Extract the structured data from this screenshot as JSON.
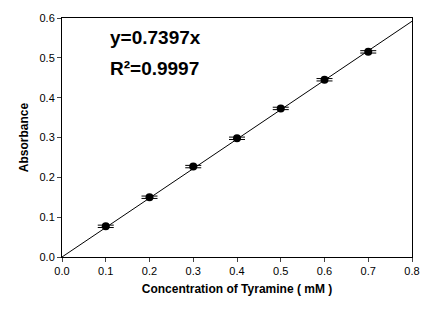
{
  "chart_data": {
    "type": "scatter",
    "x_label": "Concentration of Tyramine ( mM )",
    "y_label": "Absorbance",
    "annotations": [
      "y=0.7397x",
      "R²=0.9997"
    ],
    "x": [
      0.1,
      0.2,
      0.3,
      0.4,
      0.5,
      0.6,
      0.7
    ],
    "values": [
      0.077,
      0.15,
      0.227,
      0.298,
      0.373,
      0.445,
      0.515
    ],
    "errors": [
      0.003,
      0.003,
      0.003,
      0.003,
      0.003,
      0.003,
      0.003
    ],
    "fit_slope": 0.7397,
    "color": "#000000",
    "marker": "circle",
    "line_style": "solid",
    "xlim": [
      0,
      0.8
    ],
    "xticks": [
      {
        "value": 0,
        "label": "0.0"
      },
      0.1,
      0.2,
      0.3,
      0.4,
      0.5,
      0.6,
      0.7,
      0.8
    ],
    "ylim": [
      0,
      0.6
    ],
    "yticks": [
      {
        "value": 0,
        "label": "0.0"
      },
      0.1,
      0.2,
      0.3,
      0.4,
      0.5,
      0.6
    ],
    "grid": false
  }
}
